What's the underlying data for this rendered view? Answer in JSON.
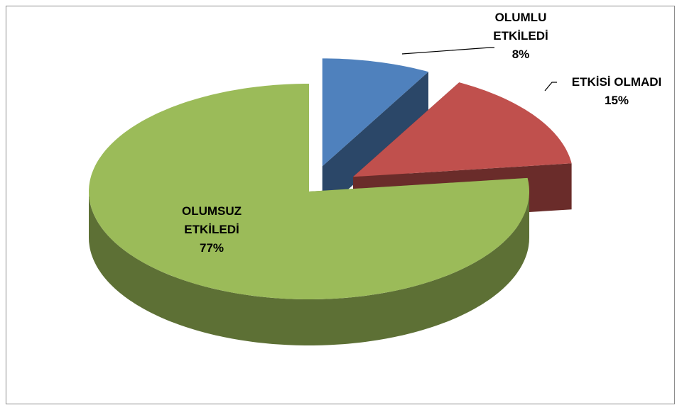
{
  "chart_data": {
    "type": "pie",
    "three_d": true,
    "exploded": [
      "OLUMLU ETKİLEDİ",
      "ETKİSİ OLMADI"
    ],
    "categories": [
      "OLUMLU ETKİLEDİ",
      "ETKİSİ OLMADI",
      "OLUMSUZ ETKİLEDİ"
    ],
    "values": [
      8,
      15,
      77
    ],
    "value_labels": [
      "8%",
      "15%",
      "77%"
    ],
    "colors": [
      "#4f81bd",
      "#c0504d",
      "#9bbb59"
    ]
  }
}
